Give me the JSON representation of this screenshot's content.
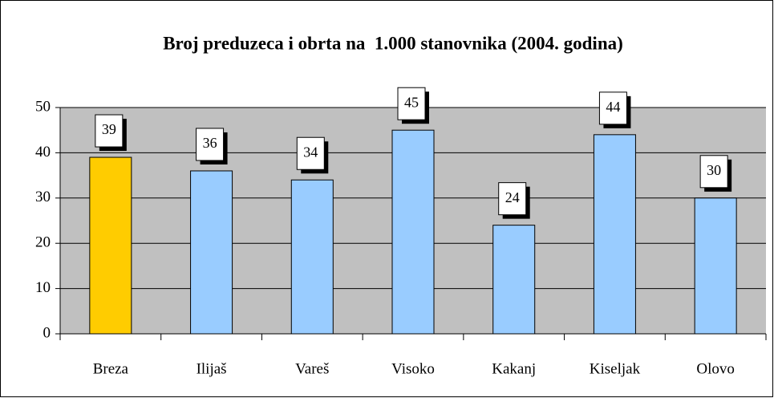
{
  "chart_data": {
    "type": "bar",
    "title": "Broj preduzeca i obrta na  1.000 stanovnika (2004. godina)",
    "categories": [
      "Breza",
      "Ilijaš",
      "Vareš",
      "Visoko",
      "Kakanj",
      "Kiseljak",
      "Olovo"
    ],
    "values": [
      39,
      36,
      34,
      45,
      24,
      44,
      30
    ],
    "colors": [
      "#ffcc00",
      "#99ccff",
      "#99ccff",
      "#99ccff",
      "#99ccff",
      "#99ccff",
      "#99ccff"
    ],
    "ylim": [
      0,
      50
    ],
    "yticks": [
      0,
      10,
      20,
      30,
      40,
      50
    ],
    "grid": true
  }
}
